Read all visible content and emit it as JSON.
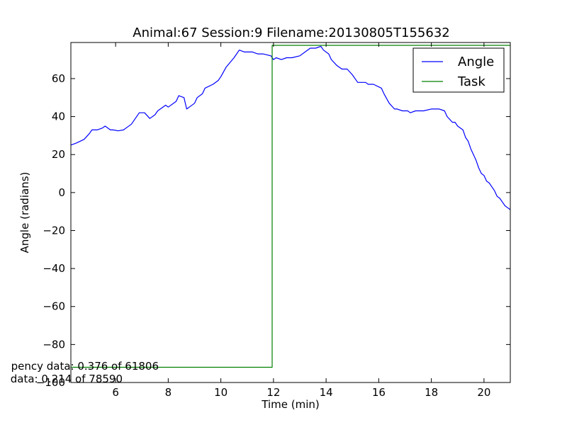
{
  "chart_data": {
    "type": "line",
    "title": "Animal:67  Session:9 Filename:20130805T155632",
    "xlabel": "Time (min)",
    "ylabel": "Angle (radians)",
    "xlim": [
      4.3,
      21.0
    ],
    "ylim": [
      -100,
      79
    ],
    "xticks": [
      6,
      8,
      10,
      12,
      14,
      16,
      18,
      20
    ],
    "xtick_labels": [
      "6",
      "8",
      "10",
      "12",
      "14",
      "16",
      "18",
      "20"
    ],
    "yticks": [
      60,
      40,
      20,
      0,
      -20,
      -40,
      -60,
      -80,
      -100
    ],
    "ytick_labels": [
      "60",
      "40",
      "20",
      "0",
      "−20",
      "−40",
      "−60",
      "−80",
      "−100"
    ],
    "grid": false,
    "legend_position": "top-right",
    "series": [
      {
        "name": "Angle",
        "color": "#0000ff",
        "x": [
          4.3,
          4.5,
          4.8,
          5.0,
          5.1,
          5.3,
          5.5,
          5.6,
          5.8,
          5.9,
          6.1,
          6.3,
          6.4,
          6.6,
          6.9,
          7.1,
          7.3,
          7.5,
          7.6,
          7.9,
          8.0,
          8.3,
          8.4,
          8.6,
          8.7,
          8.8,
          9.0,
          9.1,
          9.3,
          9.4,
          9.7,
          9.9,
          10.0,
          10.2,
          10.5,
          10.7,
          10.9,
          11.0,
          11.2,
          11.4,
          11.6,
          11.9,
          12.0,
          12.1,
          12.3,
          12.5,
          12.7,
          13.0,
          13.2,
          13.4,
          13.6,
          13.8,
          13.9,
          14.1,
          14.2,
          14.4,
          14.6,
          14.8,
          15.0,
          15.2,
          15.5,
          15.6,
          15.8,
          16.1,
          16.2,
          16.4,
          16.6,
          16.7,
          16.9,
          17.1,
          17.2,
          17.4,
          17.7,
          18.0,
          18.3,
          18.5,
          18.6,
          18.8,
          18.9,
          19.0,
          19.2,
          19.3,
          19.4,
          19.5,
          19.6,
          19.7,
          19.8,
          19.9,
          20.0,
          20.1,
          20.2,
          20.3,
          20.4,
          20.5,
          20.6,
          20.7,
          20.8,
          20.9,
          21.0
        ],
        "y": [
          25,
          26,
          28,
          31,
          33,
          33,
          34,
          35,
          33,
          33,
          32.5,
          33,
          34,
          36,
          42,
          42,
          39,
          41,
          43,
          46,
          45,
          48,
          51,
          50,
          44,
          45,
          47,
          50,
          52,
          55,
          57,
          59,
          61,
          66,
          71,
          75,
          74,
          74,
          74,
          73,
          73,
          72,
          70,
          71,
          70,
          71,
          71,
          72,
          74,
          76,
          76,
          77,
          75,
          73,
          70,
          67,
          65,
          65,
          62,
          58,
          58,
          57,
          57,
          55,
          52,
          47,
          44,
          44,
          43,
          43,
          42,
          43,
          43,
          44,
          44,
          43,
          40,
          37,
          37,
          35,
          33,
          29,
          27,
          23,
          20,
          17,
          13,
          10,
          9,
          6,
          5,
          3,
          1,
          -2,
          -3,
          -5,
          -7,
          -8,
          -9
        ]
      },
      {
        "name": "Task",
        "color": "#008000",
        "x": [
          4.3,
          11.95,
          11.95,
          21.0
        ],
        "y": [
          -92,
          -92,
          77.5,
          77.5
        ]
      }
    ],
    "annotations": [
      "pency data: 0.376 of 61806",
      "data: 0.214 of 78590"
    ]
  }
}
